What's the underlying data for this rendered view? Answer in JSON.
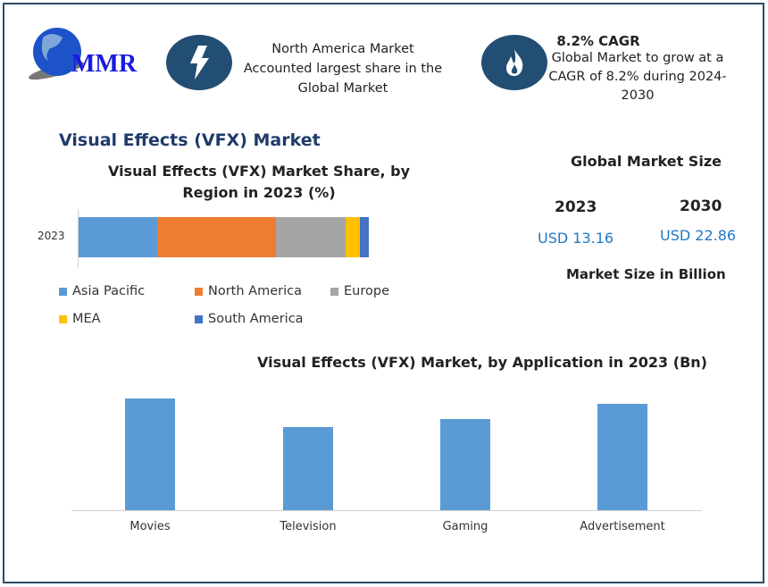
{
  "logo": {
    "text": "MMR"
  },
  "highlights": [
    {
      "icon": "lightning-icon",
      "text": "North America Market Accounted largest share in the Global Market"
    },
    {
      "icon": "fire-icon",
      "title": "8.2% CAGR",
      "text": "Global Market to grow at a CAGR of 8.2% during 2024-2030"
    }
  ],
  "page_title": "Visual Effects (VFX) Market",
  "market_size": {
    "title": "Global Market Size",
    "years": [
      {
        "year": "2023",
        "value": "USD 13.16"
      },
      {
        "year": "2030",
        "value": "USD 22.86"
      }
    ],
    "note": "Market Size in Billion"
  },
  "chart_data": [
    {
      "type": "bar",
      "orientation": "horizontal-stacked",
      "title": "Visual Effects (VFX) Market Share, by Region in 2023 (%)",
      "categories": [
        "2023"
      ],
      "series": [
        {
          "name": "Asia Pacific",
          "values": [
            27
          ],
          "color": "#5b9bd5"
        },
        {
          "name": "North America",
          "values": [
            41
          ],
          "color": "#ed7d31"
        },
        {
          "name": "Europe",
          "values": [
            24
          ],
          "color": "#a5a5a5"
        },
        {
          "name": "MEA",
          "values": [
            5
          ],
          "color": "#ffc000"
        },
        {
          "name": "South America",
          "values": [
            3
          ],
          "color": "#4472c4"
        }
      ],
      "legend": "bottom"
    },
    {
      "type": "bar",
      "title": "Visual Effects (VFX) Market, by Application in 2023 (Bn)",
      "categories": [
        "Movies",
        "Television",
        "Gaming",
        "Advertisement"
      ],
      "values": [
        3.75,
        2.79,
        3.06,
        3.57
      ],
      "color": "#5b9bd5",
      "grid": false
    }
  ]
}
